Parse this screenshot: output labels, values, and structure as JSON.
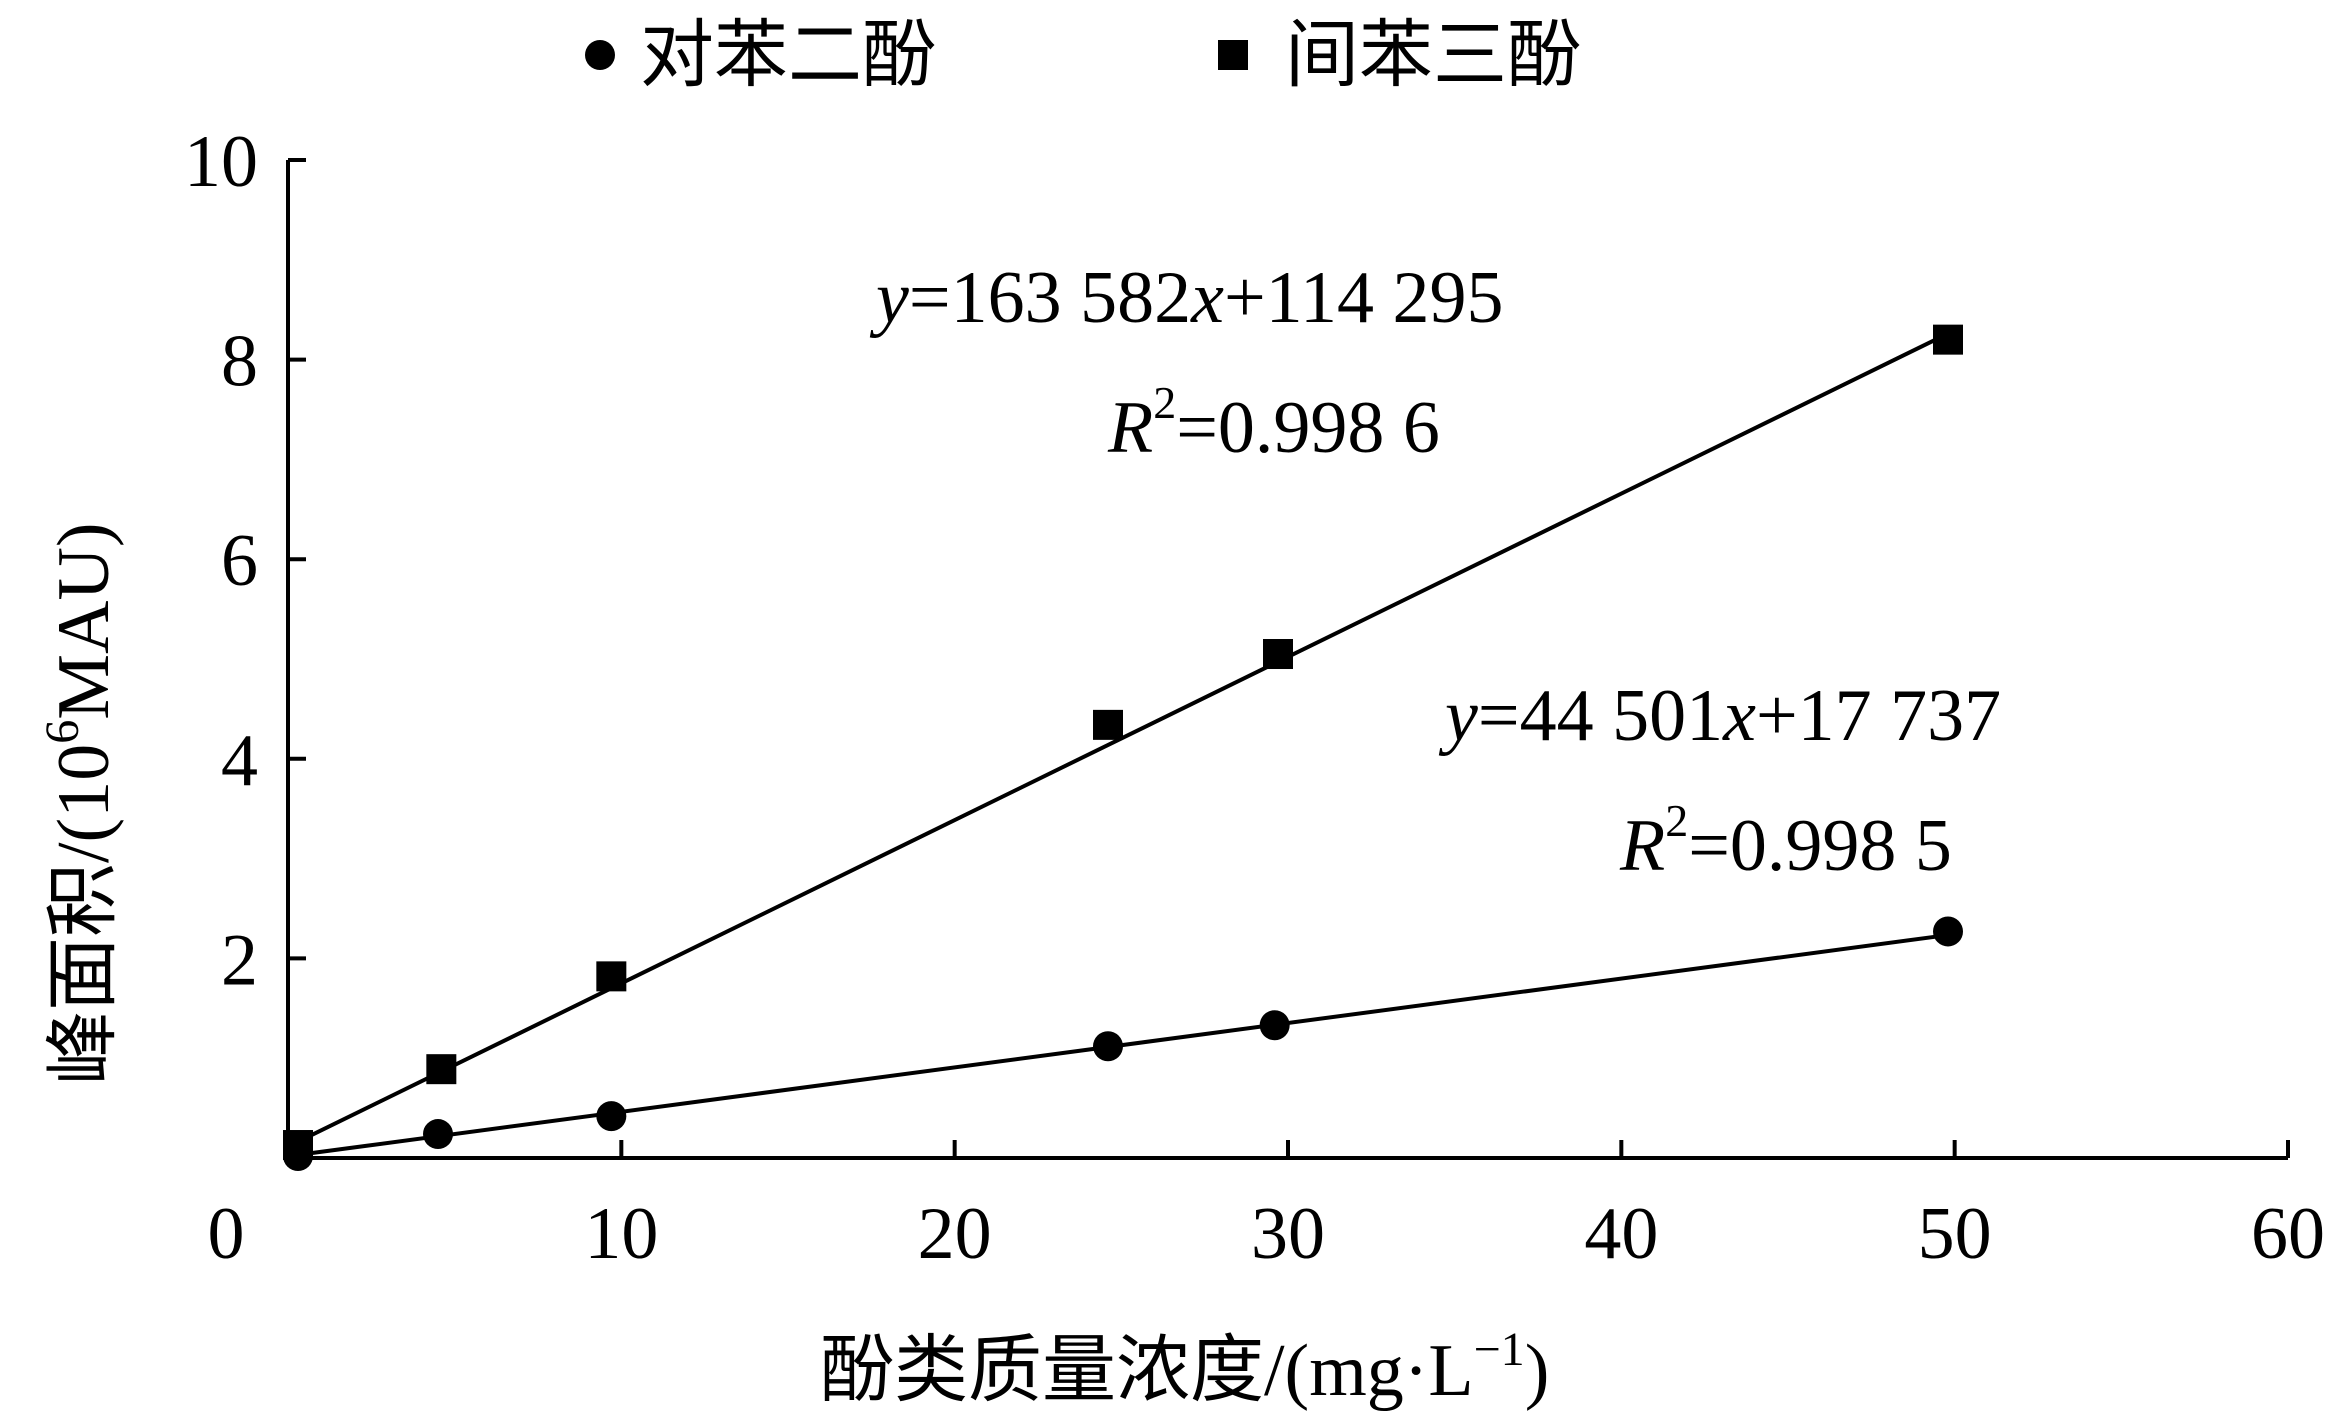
{
  "chart_data": {
    "type": "scatter",
    "xlabel": "酚类质量浓度/(mg·L",
    "xlabel_sup": "−1",
    "xlabel_end": ")",
    "ylabel": "峰面积/(10",
    "ylabel_sup": "6",
    "ylabel_end": "MAU)",
    "xlim": [
      0,
      60
    ],
    "ylim": [
      0,
      10
    ],
    "xticks": [
      0,
      10,
      20,
      30,
      40,
      50,
      60
    ],
    "yticks": [
      2,
      4,
      6,
      8,
      10
    ],
    "legend_position": "top",
    "series": [
      {
        "name": "对苯二酚",
        "marker": "circle",
        "x": [
          0.3,
          4.5,
          9.7,
          24.6,
          29.6,
          49.8
        ],
        "y": [
          0.02,
          0.24,
          0.42,
          1.12,
          1.33,
          2.27
        ],
        "fit": {
          "slope": 44501,
          "intercept": 17737,
          "scale": 1000000
        },
        "equation": {
          "y_var": "y",
          "eq1": "=44 501",
          "x_var": "x",
          "eq2": "+17 737",
          "r_var": "R",
          "r_sup": "2",
          "r_val": "=0.998 5"
        }
      },
      {
        "name": "间苯三酚",
        "marker": "square",
        "x": [
          0.3,
          4.6,
          9.7,
          24.6,
          29.7,
          49.8
        ],
        "y": [
          0.13,
          0.89,
          1.82,
          4.34,
          5.05,
          8.2
        ],
        "fit": {
          "slope": 163582,
          "intercept": 114295,
          "scale": 1000000
        },
        "equation": {
          "y_var": "y",
          "eq1": "=163 582",
          "x_var": "x",
          "eq2": "+114 295",
          "r_var": "R",
          "r_sup": "2",
          "r_val": "=0.998 6"
        }
      }
    ]
  }
}
